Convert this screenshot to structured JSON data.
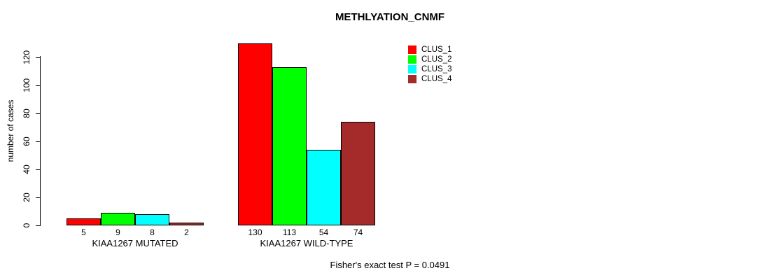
{
  "title": "METHLYATION_CNMF",
  "y_axis_title": "number of cases",
  "annotation": "Fisher's exact test P = 0.0491",
  "chart_data": {
    "type": "bar",
    "title": "METHLYATION_CNMF",
    "xlabel": "",
    "ylabel": "number of cases",
    "ylim": [
      0,
      130
    ],
    "yticks": [
      0,
      20,
      40,
      60,
      80,
      100,
      120
    ],
    "grid": false,
    "legend_position": "top-right",
    "categories": [
      "KIAA1267 MUTATED",
      "KIAA1267 WILD-TYPE"
    ],
    "series": [
      {
        "name": "CLUS_1",
        "color": "#FF0000",
        "values": [
          5,
          130
        ]
      },
      {
        "name": "CLUS_2",
        "color": "#00FF00",
        "values": [
          9,
          113
        ]
      },
      {
        "name": "CLUS_3",
        "color": "#00FFFF",
        "values": [
          8,
          54
        ]
      },
      {
        "name": "CLUS_4",
        "color": "#A52A2A",
        "values": [
          2,
          74
        ]
      }
    ],
    "bar_value_labels": [
      [
        5,
        9,
        8,
        2
      ],
      [
        130,
        113,
        54,
        74
      ]
    ],
    "annotation": "Fisher's exact test P = 0.0491"
  }
}
